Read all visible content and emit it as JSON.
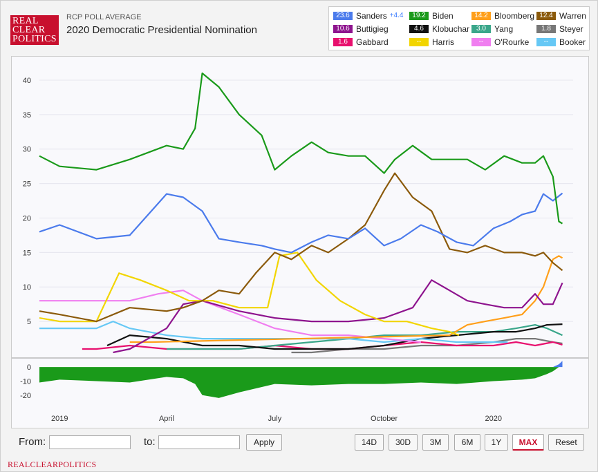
{
  "header": {
    "logo_lines": [
      "REAL",
      "CLEAR",
      "POLITICS"
    ],
    "subtitle": "RCP POLL AVERAGE",
    "title": "2020 Democratic Presidential Nomination"
  },
  "legend": [
    {
      "name": "Sanders",
      "value": "23.6",
      "spread": "+4.4",
      "color": "#4b7bec"
    },
    {
      "name": "Biden",
      "value": "19.2",
      "color": "#1a9a1a"
    },
    {
      "name": "Bloomberg",
      "value": "14.2",
      "color": "#ff9f1a"
    },
    {
      "name": "Warren",
      "value": "12.4",
      "color": "#8b5a0b"
    },
    {
      "name": "Buttigieg",
      "value": "10.6",
      "color": "#8e148e"
    },
    {
      "name": "Klobuchar",
      "value": "4.6",
      "color": "#111111"
    },
    {
      "name": "Yang",
      "value": "3.0",
      "color": "#3aa68a"
    },
    {
      "name": "Steyer",
      "value": "1.8",
      "color": "#777777"
    },
    {
      "name": "Gabbard",
      "value": "1.6",
      "color": "#e8106e"
    },
    {
      "name": "Harris",
      "value": "--",
      "color": "#f2d500"
    },
    {
      "name": "O'Rourke",
      "value": "--",
      "color": "#f07ef0"
    },
    {
      "name": "Booker",
      "value": "--",
      "color": "#66c8f5"
    }
  ],
  "chart_data": {
    "type": "line",
    "x_ticks": [
      "2019",
      "April",
      "July",
      "October",
      "2020"
    ],
    "x_tick_dates": [
      "2019-01-01",
      "2019-04-01",
      "2019-07-01",
      "2019-10-01",
      "2020-01-01"
    ],
    "x_range": [
      "2018-12-15",
      "2020-03-08"
    ],
    "y_ticks": [
      5,
      10,
      15,
      20,
      25,
      30,
      35,
      40
    ],
    "ylim": [
      0,
      42
    ],
    "lower_ticks": [
      0,
      -10,
      -20
    ],
    "lower_ylim": [
      -25,
      4
    ],
    "spread_color": "#1a9a1a",
    "spread_positive_color": "#4b7bec",
    "series": [
      {
        "name": "Biden",
        "color": "#1a9a1a",
        "x": [
          "2018-12-15",
          "2019-01-01",
          "2019-02-01",
          "2019-03-01",
          "2019-04-01",
          "2019-04-15",
          "2019-04-25",
          "2019-05-01",
          "2019-05-15",
          "2019-06-01",
          "2019-06-20",
          "2019-07-01",
          "2019-07-15",
          "2019-08-01",
          "2019-08-15",
          "2019-09-01",
          "2019-09-15",
          "2019-10-01",
          "2019-10-10",
          "2019-10-25",
          "2019-11-10",
          "2019-11-25",
          "2019-12-10",
          "2019-12-25",
          "2020-01-10",
          "2020-01-25",
          "2020-02-05",
          "2020-02-12",
          "2020-02-20",
          "2020-02-25",
          "2020-02-28"
        ],
        "y": [
          29.0,
          27.5,
          27.0,
          28.5,
          30.5,
          30.0,
          33.0,
          41.0,
          39.0,
          35.0,
          32.0,
          27.0,
          29.0,
          31.0,
          29.5,
          29.0,
          29.0,
          26.5,
          28.5,
          30.5,
          28.5,
          28.5,
          28.5,
          27.0,
          29.0,
          28.0,
          28.0,
          29.0,
          26.0,
          19.5,
          19.2
        ]
      },
      {
        "name": "Sanders",
        "color": "#4b7bec",
        "x": [
          "2018-12-15",
          "2019-01-01",
          "2019-02-01",
          "2019-03-01",
          "2019-04-01",
          "2019-04-15",
          "2019-05-01",
          "2019-05-15",
          "2019-06-01",
          "2019-06-20",
          "2019-07-01",
          "2019-07-15",
          "2019-08-01",
          "2019-08-15",
          "2019-09-01",
          "2019-09-15",
          "2019-10-01",
          "2019-10-15",
          "2019-11-01",
          "2019-11-15",
          "2019-12-01",
          "2019-12-15",
          "2020-01-01",
          "2020-01-15",
          "2020-01-25",
          "2020-02-05",
          "2020-02-12",
          "2020-02-20",
          "2020-02-28"
        ],
        "y": [
          18.0,
          19.0,
          17.0,
          17.5,
          23.5,
          23.0,
          21.0,
          17.0,
          16.5,
          16.0,
          15.5,
          15.0,
          16.5,
          17.5,
          17.0,
          18.5,
          16.0,
          17.0,
          19.0,
          18.0,
          16.5,
          16.0,
          18.5,
          19.5,
          20.5,
          21.0,
          23.5,
          22.5,
          23.6
        ]
      },
      {
        "name": "Warren",
        "color": "#8b5a0b",
        "x": [
          "2018-12-15",
          "2019-01-01",
          "2019-02-01",
          "2019-03-01",
          "2019-04-01",
          "2019-04-15",
          "2019-05-01",
          "2019-05-15",
          "2019-06-01",
          "2019-06-15",
          "2019-07-01",
          "2019-07-15",
          "2019-08-01",
          "2019-08-15",
          "2019-09-01",
          "2019-09-15",
          "2019-10-01",
          "2019-10-10",
          "2019-10-25",
          "2019-11-10",
          "2019-11-25",
          "2019-12-10",
          "2019-12-25",
          "2020-01-10",
          "2020-01-25",
          "2020-02-05",
          "2020-02-12",
          "2020-02-20",
          "2020-02-28"
        ],
        "y": [
          6.5,
          6.0,
          5.0,
          7.0,
          6.5,
          7.0,
          8.0,
          9.5,
          9.0,
          12.0,
          15.0,
          14.0,
          16.0,
          15.0,
          17.0,
          19.0,
          24.0,
          26.5,
          23.0,
          21.0,
          15.5,
          15.0,
          16.0,
          15.0,
          15.0,
          14.5,
          15.0,
          13.5,
          12.4
        ]
      },
      {
        "name": "Harris",
        "color": "#f2d500",
        "x": [
          "2018-12-15",
          "2019-01-01",
          "2019-02-01",
          "2019-02-20",
          "2019-03-10",
          "2019-04-01",
          "2019-04-20",
          "2019-05-10",
          "2019-06-01",
          "2019-06-25",
          "2019-07-05",
          "2019-07-20",
          "2019-08-05",
          "2019-08-25",
          "2019-09-15",
          "2019-10-01",
          "2019-10-20",
          "2019-11-10",
          "2019-11-25",
          "2019-12-03"
        ],
        "y": [
          5.5,
          5.0,
          5.0,
          12.0,
          11.0,
          9.5,
          8.0,
          8.0,
          7.0,
          7.0,
          14.5,
          15.0,
          11.0,
          8.0,
          6.0,
          5.0,
          5.0,
          4.0,
          3.5,
          3.0
        ]
      },
      {
        "name": "Buttigieg",
        "color": "#8e148e",
        "x": [
          "2019-02-15",
          "2019-03-01",
          "2019-04-01",
          "2019-04-15",
          "2019-05-01",
          "2019-06-01",
          "2019-07-01",
          "2019-08-01",
          "2019-09-01",
          "2019-10-01",
          "2019-10-25",
          "2019-11-10",
          "2019-11-25",
          "2019-12-10",
          "2019-12-25",
          "2020-01-10",
          "2020-01-25",
          "2020-02-05",
          "2020-02-12",
          "2020-02-20",
          "2020-02-28"
        ],
        "y": [
          0.5,
          1.0,
          4.0,
          7.5,
          8.0,
          6.5,
          5.5,
          5.0,
          5.0,
          5.5,
          7.0,
          11.0,
          9.5,
          8.0,
          7.5,
          7.0,
          7.0,
          9.0,
          7.5,
          7.5,
          10.6
        ]
      },
      {
        "name": "Bloomberg",
        "color": "#ff9f1a",
        "x": [
          "2019-03-01",
          "2019-03-20",
          "2019-11-25",
          "2019-12-10",
          "2019-12-25",
          "2020-01-10",
          "2020-01-25",
          "2020-02-05",
          "2020-02-12",
          "2020-02-20",
          "2020-02-25",
          "2020-02-28"
        ],
        "y": [
          2.0,
          2.0,
          3.0,
          4.5,
          5.0,
          5.5,
          6.0,
          8.0,
          10.0,
          14.0,
          14.5,
          14.2
        ]
      },
      {
        "name": "O'Rourke",
        "color": "#f07ef0",
        "x": [
          "2018-12-15",
          "2019-01-01",
          "2019-02-01",
          "2019-03-01",
          "2019-03-25",
          "2019-04-15",
          "2019-05-01",
          "2019-06-01",
          "2019-07-01",
          "2019-08-01",
          "2019-09-01",
          "2019-10-01",
          "2019-11-01"
        ],
        "y": [
          8.0,
          8.0,
          8.0,
          8.0,
          9.0,
          9.5,
          8.0,
          6.0,
          4.0,
          3.0,
          3.0,
          2.5,
          2.0
        ]
      },
      {
        "name": "Booker",
        "color": "#66c8f5",
        "x": [
          "2018-12-15",
          "2019-01-01",
          "2019-02-01",
          "2019-02-15",
          "2019-03-01",
          "2019-04-01",
          "2019-05-01",
          "2019-06-01",
          "2019-07-01",
          "2019-08-01",
          "2019-09-01",
          "2019-10-01",
          "2019-11-01",
          "2019-12-01",
          "2020-01-01",
          "2020-01-13"
        ],
        "y": [
          4.0,
          4.0,
          4.0,
          5.0,
          4.0,
          3.0,
          2.5,
          2.5,
          2.5,
          2.5,
          2.5,
          2.0,
          2.5,
          2.0,
          2.0,
          2.0
        ]
      },
      {
        "name": "Klobuchar",
        "color": "#111111",
        "x": [
          "2019-02-10",
          "2019-03-01",
          "2019-04-01",
          "2019-05-01",
          "2019-06-01",
          "2019-07-01",
          "2019-08-01",
          "2019-09-01",
          "2019-10-01",
          "2019-11-01",
          "2019-12-01",
          "2020-01-01",
          "2020-01-20",
          "2020-02-05",
          "2020-02-15",
          "2020-02-28"
        ],
        "y": [
          1.5,
          3.0,
          2.5,
          1.5,
          1.5,
          1.0,
          1.0,
          1.0,
          1.5,
          2.5,
          3.0,
          3.5,
          3.5,
          4.0,
          4.5,
          4.6
        ]
      },
      {
        "name": "Yang",
        "color": "#3aa68a",
        "x": [
          "2019-04-01",
          "2019-05-01",
          "2019-06-01",
          "2019-07-01",
          "2019-08-01",
          "2019-09-01",
          "2019-10-01",
          "2019-11-01",
          "2019-12-01",
          "2020-01-01",
          "2020-01-20",
          "2020-02-05",
          "2020-02-15",
          "2020-02-28"
        ],
        "y": [
          1.0,
          1.0,
          1.0,
          1.5,
          2.0,
          2.5,
          3.0,
          3.0,
          3.5,
          3.5,
          4.0,
          4.5,
          4.0,
          3.0
        ]
      },
      {
        "name": "Gabbard",
        "color": "#e8106e",
        "x": [
          "2019-01-20",
          "2019-02-01",
          "2019-03-01",
          "2019-04-01",
          "2019-05-01",
          "2019-06-01",
          "2019-07-01",
          "2019-08-01",
          "2019-09-01",
          "2019-10-01",
          "2019-11-01",
          "2019-12-01",
          "2020-01-01",
          "2020-01-20",
          "2020-02-05",
          "2020-02-20",
          "2020-02-28"
        ],
        "y": [
          1.0,
          1.0,
          1.5,
          1.0,
          1.0,
          1.0,
          1.5,
          1.0,
          1.0,
          1.5,
          2.0,
          1.5,
          1.5,
          2.0,
          1.5,
          2.0,
          1.6
        ]
      },
      {
        "name": "Steyer",
        "color": "#777777",
        "x": [
          "2019-07-15",
          "2019-08-01",
          "2019-09-01",
          "2019-10-01",
          "2019-11-01",
          "2019-12-01",
          "2020-01-01",
          "2020-01-20",
          "2020-02-05",
          "2020-02-20",
          "2020-02-28"
        ],
        "y": [
          0.5,
          0.5,
          1.0,
          1.0,
          1.5,
          1.5,
          2.0,
          2.5,
          2.5,
          2.0,
          1.8
        ]
      }
    ],
    "spread": {
      "x": [
        "2018-12-15",
        "2019-01-01",
        "2019-02-01",
        "2019-03-01",
        "2019-04-01",
        "2019-04-15",
        "2019-04-25",
        "2019-05-01",
        "2019-05-15",
        "2019-06-01",
        "2019-07-01",
        "2019-08-01",
        "2019-09-01",
        "2019-10-01",
        "2019-11-01",
        "2019-12-01",
        "2020-01-01",
        "2020-01-25",
        "2020-02-05",
        "2020-02-15",
        "2020-02-20",
        "2020-02-25",
        "2020-02-28"
      ],
      "y": [
        -11,
        -9,
        -10,
        -11,
        -7,
        -8,
        -12,
        -20,
        -22,
        -18,
        -12,
        -13,
        -12,
        -12,
        -11,
        -12,
        -10,
        -9,
        -8,
        -5,
        -3,
        2,
        4.4
      ]
    }
  },
  "controls": {
    "from_label": "From:",
    "to_label": "to:",
    "from_value": "",
    "to_value": "",
    "apply_label": "Apply",
    "ranges": [
      "14D",
      "30D",
      "3M",
      "6M",
      "1Y",
      "MAX",
      "Reset"
    ],
    "active_range": "MAX"
  },
  "footer": {
    "text": "REALCLEARPOLITICS"
  }
}
